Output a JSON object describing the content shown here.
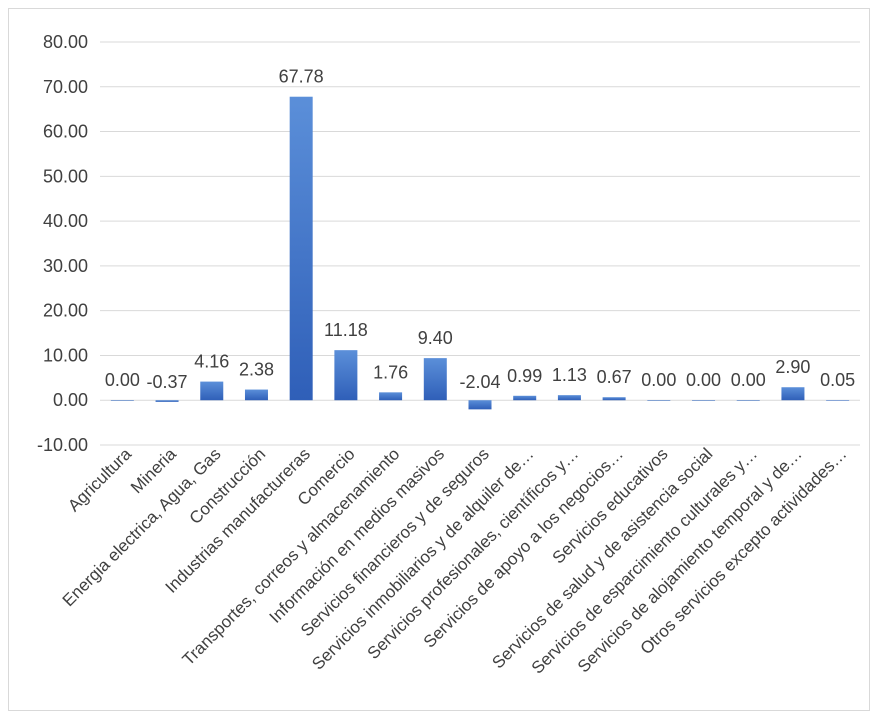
{
  "chart_data": {
    "type": "bar",
    "title": "",
    "xlabel": "",
    "ylabel": "",
    "ylim": [
      -10,
      80
    ],
    "yticks": [
      "80.00",
      "70.00",
      "60.00",
      "50.00",
      "40.00",
      "30.00",
      "20.00",
      "10.00",
      "0.00",
      "-10.00"
    ],
    "categories": [
      "Agricultura",
      "Mineria",
      "Energia electrica, Agua, Gas",
      "Construcción",
      "Industrias manufactureras",
      "Comercio",
      "Transportes, correos y almacenamiento",
      "Información en medios masivos",
      "Servicios financieros y de seguros",
      "Servicios inmobiliarios y de alquiler de…",
      "Servicios profesionales, científicos y…",
      "Servicios de apoyo a los negocios…",
      "Servicios educativos",
      "Servicios de salud y de asistencia social",
      "Servicios de esparcimiento culturales y…",
      "Servicios de alojamiento temporal y de…",
      "Otros servicios excepto actividades…"
    ],
    "values": [
      0.0,
      -0.37,
      4.16,
      2.38,
      67.78,
      11.18,
      1.76,
      9.4,
      -2.04,
      0.99,
      1.13,
      0.67,
      0.0,
      0.0,
      0.0,
      2.9,
      0.05
    ],
    "data_labels": [
      "0.00",
      "-0.37",
      "4.16",
      "2.38",
      "67.78",
      "11.18",
      "1.76",
      "9.40",
      "-2.04",
      "0.99",
      "1.13",
      "0.67",
      "0.00",
      "0.00",
      "0.00",
      "2.90",
      "0.05"
    ],
    "grid": true,
    "legend": "none",
    "bar_color_top": "#5b8fd9",
    "bar_color_bottom": "#2f5fb8"
  }
}
